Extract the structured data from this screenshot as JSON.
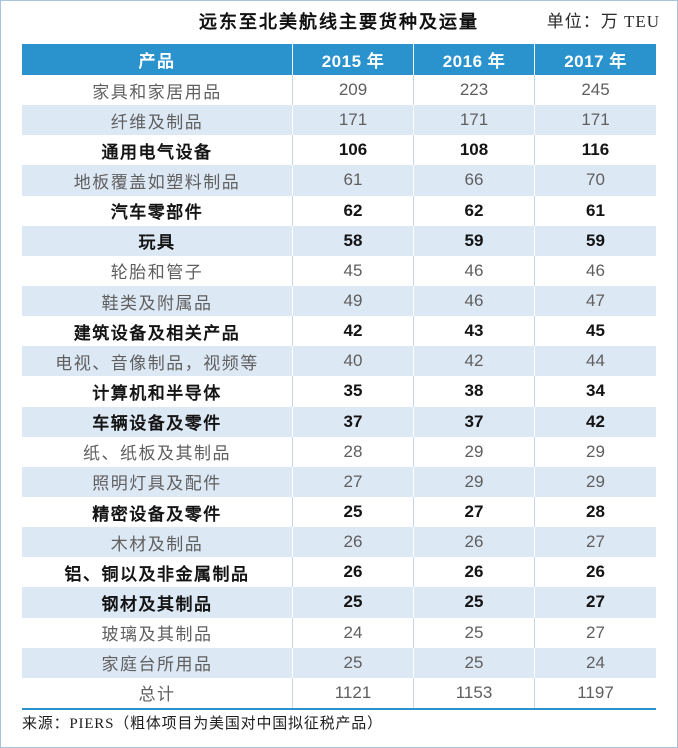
{
  "colors": {
    "header_bg": "#2a92cd",
    "header_text": "#ffffff",
    "stripe_bg": "#dde8f5",
    "bold_text": "#141414",
    "muted_text": "#5f5f5f",
    "rule": "#2a92cd",
    "frame": "#a9c3dc"
  },
  "chart_data": {
    "type": "table",
    "title": "远东至北美航线主要货种及运量",
    "unit": "单位：万 TEU",
    "columns": [
      "产品",
      "2015 年",
      "2016 年",
      "2017 年"
    ],
    "rows": [
      {
        "product": "家具和家居用品",
        "values": [
          209,
          223,
          245
        ],
        "bold": false
      },
      {
        "product": "纤维及制品",
        "values": [
          171,
          171,
          171
        ],
        "bold": false
      },
      {
        "product": "通用电气设备",
        "values": [
          106,
          108,
          116
        ],
        "bold": true
      },
      {
        "product": "地板覆盖如塑料制品",
        "values": [
          61,
          66,
          70
        ],
        "bold": false
      },
      {
        "product": "汽车零部件",
        "values": [
          62,
          62,
          61
        ],
        "bold": true
      },
      {
        "product": "玩具",
        "values": [
          58,
          59,
          59
        ],
        "bold": true
      },
      {
        "product": "轮胎和管子",
        "values": [
          45,
          46,
          46
        ],
        "bold": false
      },
      {
        "product": "鞋类及附属品",
        "values": [
          49,
          46,
          47
        ],
        "bold": false
      },
      {
        "product": "建筑设备及相关产品",
        "values": [
          42,
          43,
          45
        ],
        "bold": true
      },
      {
        "product": "电视、音像制品，视频等",
        "values": [
          40,
          42,
          44
        ],
        "bold": false
      },
      {
        "product": "计算机和半导体",
        "values": [
          35,
          38,
          34
        ],
        "bold": true
      },
      {
        "product": "车辆设备及零件",
        "values": [
          37,
          37,
          42
        ],
        "bold": true
      },
      {
        "product": "纸、纸板及其制品",
        "values": [
          28,
          29,
          29
        ],
        "bold": false
      },
      {
        "product": "照明灯具及配件",
        "values": [
          27,
          29,
          29
        ],
        "bold": false
      },
      {
        "product": "精密设备及零件",
        "values": [
          25,
          27,
          28
        ],
        "bold": true
      },
      {
        "product": "木材及制品",
        "values": [
          26,
          26,
          27
        ],
        "bold": false
      },
      {
        "product": "铝、铜以及非金属制品",
        "values": [
          26,
          26,
          26
        ],
        "bold": true
      },
      {
        "product": "钢材及其制品",
        "values": [
          25,
          25,
          27
        ],
        "bold": true
      },
      {
        "product": "玻璃及其制品",
        "values": [
          24,
          25,
          27
        ],
        "bold": false
      },
      {
        "product": "家庭台所用品",
        "values": [
          25,
          25,
          24
        ],
        "bold": false
      },
      {
        "product": "总计",
        "values": [
          1121,
          1153,
          1197
        ],
        "bold": false
      }
    ],
    "source_note": "来源：PIERS（粗体项目为美国对中国拟征税产品）"
  }
}
